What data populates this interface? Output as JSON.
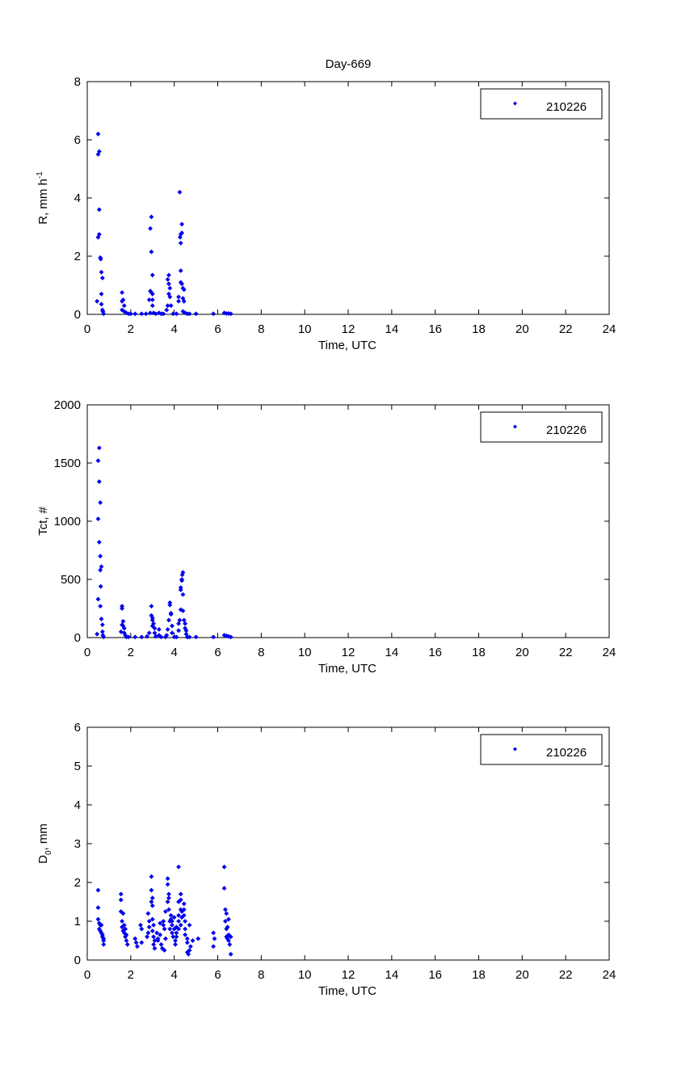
{
  "title": "Day-669",
  "colors": {
    "marker": "#0000ee",
    "axis": "#000000"
  },
  "chart_data": [
    {
      "type": "scatter",
      "xlabel": "Time, UTC",
      "ylabel": "R, mm h",
      "ylabel_sup": "-1",
      "xlim": [
        0,
        24
      ],
      "ylim": [
        0,
        8
      ],
      "xticks": [
        "0",
        "2",
        "4",
        "6",
        "8",
        "10",
        "12",
        "14",
        "16",
        "18",
        "20",
        "22",
        "24"
      ],
      "yticks": [
        "0",
        "2",
        "4",
        "6",
        "8"
      ],
      "legend": {
        "label": "210226",
        "position": "top-right"
      },
      "points": [
        [
          0.5,
          6.2
        ],
        [
          0.55,
          5.6
        ],
        [
          0.5,
          5.5
        ],
        [
          0.55,
          3.6
        ],
        [
          0.5,
          2.65
        ],
        [
          0.55,
          2.75
        ],
        [
          0.6,
          1.95
        ],
        [
          0.62,
          1.9
        ],
        [
          0.65,
          1.45
        ],
        [
          0.7,
          1.25
        ],
        [
          0.65,
          0.7
        ],
        [
          0.45,
          0.45
        ],
        [
          0.65,
          0.35
        ],
        [
          0.7,
          0.15
        ],
        [
          0.72,
          0.1
        ],
        [
          0.75,
          0.02
        ],
        [
          1.6,
          0.75
        ],
        [
          1.6,
          0.45
        ],
        [
          1.65,
          0.5
        ],
        [
          1.7,
          0.3
        ],
        [
          1.6,
          0.15
        ],
        [
          1.7,
          0.1
        ],
        [
          1.8,
          0.05
        ],
        [
          1.9,
          0.02
        ],
        [
          2.0,
          0.02
        ],
        [
          2.2,
          0.02
        ],
        [
          2.5,
          0.02
        ],
        [
          2.7,
          0.02
        ],
        [
          2.95,
          3.35
        ],
        [
          2.9,
          2.95
        ],
        [
          2.95,
          2.15
        ],
        [
          3.0,
          1.35
        ],
        [
          2.9,
          0.8
        ],
        [
          2.95,
          0.75
        ],
        [
          3.0,
          0.7
        ],
        [
          2.85,
          0.5
        ],
        [
          3.0,
          0.5
        ],
        [
          3.0,
          0.3
        ],
        [
          2.9,
          0.05
        ],
        [
          3.05,
          0.05
        ],
        [
          3.15,
          0.02
        ],
        [
          3.3,
          0.05
        ],
        [
          3.4,
          0.02
        ],
        [
          3.5,
          0.02
        ],
        [
          3.65,
          0.15
        ],
        [
          3.7,
          0.3
        ],
        [
          3.75,
          1.35
        ],
        [
          3.7,
          1.2
        ],
        [
          3.75,
          1.05
        ],
        [
          3.8,
          0.9
        ],
        [
          3.75,
          0.7
        ],
        [
          3.8,
          0.6
        ],
        [
          3.85,
          0.3
        ],
        [
          3.95,
          0.02
        ],
        [
          4.1,
          0.02
        ],
        [
          4.2,
          0.45
        ],
        [
          4.2,
          0.6
        ],
        [
          4.25,
          4.2
        ],
        [
          4.3,
          2.75
        ],
        [
          4.27,
          2.65
        ],
        [
          4.35,
          2.8
        ],
        [
          4.35,
          3.1
        ],
        [
          4.3,
          2.45
        ],
        [
          4.3,
          1.5
        ],
        [
          4.3,
          1.1
        ],
        [
          4.35,
          1.05
        ],
        [
          4.4,
          0.9
        ],
        [
          4.45,
          0.85
        ],
        [
          4.4,
          0.55
        ],
        [
          4.45,
          0.45
        ],
        [
          4.4,
          0.1
        ],
        [
          4.5,
          0.05
        ],
        [
          4.6,
          0.02
        ],
        [
          4.7,
          0.02
        ],
        [
          5.0,
          0.02
        ],
        [
          5.8,
          0.02
        ],
        [
          6.3,
          0.05
        ],
        [
          6.4,
          0.03
        ],
        [
          6.5,
          0.03
        ],
        [
          6.6,
          0.02
        ]
      ]
    },
    {
      "type": "scatter",
      "xlabel": "Time, UTC",
      "ylabel": "Tct, #",
      "xlim": [
        0,
        24
      ],
      "ylim": [
        0,
        2000
      ],
      "xticks": [
        "0",
        "2",
        "4",
        "6",
        "8",
        "10",
        "12",
        "14",
        "16",
        "18",
        "20",
        "22",
        "24"
      ],
      "yticks": [
        "0",
        "500",
        "1000",
        "1500",
        "2000"
      ],
      "legend": {
        "label": "210226",
        "position": "top-right"
      },
      "points": [
        [
          0.55,
          1630
        ],
        [
          0.5,
          1520
        ],
        [
          0.55,
          1340
        ],
        [
          0.6,
          1160
        ],
        [
          0.5,
          1020
        ],
        [
          0.55,
          820
        ],
        [
          0.6,
          700
        ],
        [
          0.65,
          610
        ],
        [
          0.6,
          580
        ],
        [
          0.62,
          440
        ],
        [
          0.5,
          330
        ],
        [
          0.6,
          270
        ],
        [
          0.65,
          160
        ],
        [
          0.7,
          110
        ],
        [
          0.45,
          30
        ],
        [
          0.7,
          50
        ],
        [
          0.72,
          20
        ],
        [
          0.75,
          5
        ],
        [
          1.6,
          270
        ],
        [
          1.6,
          250
        ],
        [
          1.65,
          140
        ],
        [
          1.6,
          110
        ],
        [
          1.65,
          100
        ],
        [
          1.7,
          80
        ],
        [
          1.55,
          50
        ],
        [
          1.7,
          40
        ],
        [
          1.75,
          20
        ],
        [
          1.8,
          5
        ],
        [
          1.9,
          5
        ],
        [
          2.2,
          5
        ],
        [
          2.5,
          5
        ],
        [
          2.75,
          10
        ],
        [
          2.85,
          40
        ],
        [
          2.95,
          270
        ],
        [
          2.95,
          190
        ],
        [
          3.0,
          170
        ],
        [
          3.0,
          150
        ],
        [
          3.05,
          120
        ],
        [
          3.0,
          100
        ],
        [
          3.1,
          80
        ],
        [
          3.1,
          40
        ],
        [
          3.15,
          10
        ],
        [
          3.3,
          70
        ],
        [
          3.3,
          20
        ],
        [
          3.4,
          5
        ],
        [
          3.6,
          5
        ],
        [
          3.65,
          20
        ],
        [
          3.7,
          70
        ],
        [
          3.75,
          150
        ],
        [
          3.8,
          300
        ],
        [
          3.8,
          280
        ],
        [
          3.85,
          210
        ],
        [
          3.85,
          200
        ],
        [
          3.9,
          100
        ],
        [
          3.9,
          40
        ],
        [
          4.0,
          5
        ],
        [
          4.1,
          5
        ],
        [
          4.2,
          60
        ],
        [
          4.2,
          120
        ],
        [
          4.25,
          150
        ],
        [
          4.3,
          430
        ],
        [
          4.3,
          410
        ],
        [
          4.35,
          500
        ],
        [
          4.35,
          490
        ],
        [
          4.37,
          540
        ],
        [
          4.4,
          560
        ],
        [
          4.4,
          370
        ],
        [
          4.3,
          240
        ],
        [
          4.4,
          230
        ],
        [
          4.45,
          150
        ],
        [
          4.5,
          120
        ],
        [
          4.5,
          80
        ],
        [
          4.55,
          60
        ],
        [
          4.55,
          30
        ],
        [
          4.6,
          5
        ],
        [
          4.7,
          5
        ],
        [
          5.0,
          5
        ],
        [
          5.8,
          5
        ],
        [
          6.3,
          20
        ],
        [
          6.4,
          15
        ],
        [
          6.5,
          10
        ],
        [
          6.6,
          5
        ]
      ]
    },
    {
      "type": "scatter",
      "xlabel": "Time, UTC",
      "ylabel": "D",
      "ylabel_sub": "0",
      "ylabel_suffix": ", mm",
      "xlim": [
        0,
        24
      ],
      "ylim": [
        0,
        6
      ],
      "xticks": [
        "0",
        "2",
        "4",
        "6",
        "8",
        "10",
        "12",
        "14",
        "16",
        "18",
        "20",
        "22",
        "24"
      ],
      "yticks": [
        "0",
        "1",
        "2",
        "3",
        "4",
        "5",
        "6"
      ],
      "legend": {
        "label": "210226",
        "position": "top-right"
      },
      "points": [
        [
          0.5,
          1.8
        ],
        [
          0.5,
          1.35
        ],
        [
          0.5,
          1.05
        ],
        [
          0.55,
          0.95
        ],
        [
          0.6,
          0.9
        ],
        [
          0.65,
          0.9
        ],
        [
          0.55,
          0.8
        ],
        [
          0.6,
          0.75
        ],
        [
          0.65,
          0.7
        ],
        [
          0.7,
          0.65
        ],
        [
          0.7,
          0.6
        ],
        [
          0.75,
          0.55
        ],
        [
          0.75,
          0.5
        ],
        [
          0.75,
          0.4
        ],
        [
          1.55,
          1.7
        ],
        [
          1.55,
          1.55
        ],
        [
          1.55,
          1.25
        ],
        [
          1.65,
          1.2
        ],
        [
          1.6,
          1.0
        ],
        [
          1.7,
          0.9
        ],
        [
          1.6,
          0.85
        ],
        [
          1.75,
          0.8
        ],
        [
          1.65,
          0.75
        ],
        [
          1.7,
          0.7
        ],
        [
          1.8,
          0.65
        ],
        [
          1.75,
          0.6
        ],
        [
          1.8,
          0.5
        ],
        [
          1.85,
          0.4
        ],
        [
          2.2,
          0.55
        ],
        [
          2.25,
          0.45
        ],
        [
          2.3,
          0.35
        ],
        [
          2.5,
          0.45
        ],
        [
          2.45,
          0.9
        ],
        [
          2.5,
          0.8
        ],
        [
          2.8,
          0.7
        ],
        [
          2.75,
          0.6
        ],
        [
          2.8,
          1.2
        ],
        [
          2.85,
          1.0
        ],
        [
          2.85,
          0.85
        ],
        [
          2.95,
          2.15
        ],
        [
          2.95,
          1.8
        ],
        [
          3.0,
          1.6
        ],
        [
          2.95,
          1.5
        ],
        [
          3.0,
          1.4
        ],
        [
          3.0,
          1.05
        ],
        [
          3.05,
          0.9
        ],
        [
          3.0,
          0.75
        ],
        [
          3.05,
          0.6
        ],
        [
          3.1,
          0.5
        ],
        [
          3.05,
          0.4
        ],
        [
          3.1,
          0.3
        ],
        [
          3.2,
          0.7
        ],
        [
          3.25,
          0.55
        ],
        [
          3.25,
          0.5
        ],
        [
          3.35,
          0.95
        ],
        [
          3.35,
          0.65
        ],
        [
          3.4,
          0.4
        ],
        [
          3.45,
          0.3
        ],
        [
          3.5,
          1.0
        ],
        [
          3.5,
          0.9
        ],
        [
          3.55,
          0.8
        ],
        [
          3.6,
          1.25
        ],
        [
          3.6,
          0.55
        ],
        [
          3.55,
          0.25
        ],
        [
          3.7,
          2.1
        ],
        [
          3.7,
          1.95
        ],
        [
          3.75,
          1.7
        ],
        [
          3.75,
          1.6
        ],
        [
          3.7,
          1.5
        ],
        [
          3.75,
          1.3
        ],
        [
          3.8,
          1.0
        ],
        [
          3.8,
          0.8
        ],
        [
          3.85,
          1.15
        ],
        [
          3.85,
          1.05
        ],
        [
          3.9,
          1.0
        ],
        [
          3.9,
          0.9
        ],
        [
          3.9,
          0.7
        ],
        [
          3.95,
          0.6
        ],
        [
          4.0,
          1.1
        ],
        [
          4.0,
          0.8
        ],
        [
          4.05,
          0.5
        ],
        [
          4.05,
          0.4
        ],
        [
          4.1,
          0.85
        ],
        [
          4.1,
          0.7
        ],
        [
          4.1,
          0.6
        ],
        [
          4.2,
          2.4
        ],
        [
          4.2,
          1.5
        ],
        [
          4.2,
          1.15
        ],
        [
          4.2,
          1.0
        ],
        [
          4.2,
          0.8
        ],
        [
          4.3,
          1.7
        ],
        [
          4.3,
          1.55
        ],
        [
          4.3,
          1.3
        ],
        [
          4.35,
          1.25
        ],
        [
          4.35,
          1.1
        ],
        [
          4.3,
          0.9
        ],
        [
          4.45,
          1.45
        ],
        [
          4.45,
          1.3
        ],
        [
          4.45,
          1.15
        ],
        [
          4.5,
          1.0
        ],
        [
          4.5,
          0.8
        ],
        [
          4.5,
          0.65
        ],
        [
          4.6,
          0.55
        ],
        [
          4.6,
          0.45
        ],
        [
          4.6,
          0.2
        ],
        [
          4.65,
          0.15
        ],
        [
          4.7,
          0.9
        ],
        [
          4.75,
          0.35
        ],
        [
          4.7,
          0.25
        ],
        [
          4.85,
          0.5
        ],
        [
          5.1,
          0.55
        ],
        [
          5.8,
          0.7
        ],
        [
          5.85,
          0.55
        ],
        [
          5.8,
          0.35
        ],
        [
          6.3,
          2.4
        ],
        [
          6.3,
          1.85
        ],
        [
          6.35,
          1.3
        ],
        [
          6.4,
          1.2
        ],
        [
          6.35,
          1.0
        ],
        [
          6.4,
          0.8
        ],
        [
          6.4,
          0.6
        ],
        [
          6.45,
          0.55
        ],
        [
          6.5,
          1.05
        ],
        [
          6.45,
          0.85
        ],
        [
          6.5,
          0.65
        ],
        [
          6.5,
          0.5
        ],
        [
          6.55,
          0.4
        ],
        [
          6.6,
          0.6
        ],
        [
          6.6,
          0.15
        ]
      ]
    }
  ]
}
